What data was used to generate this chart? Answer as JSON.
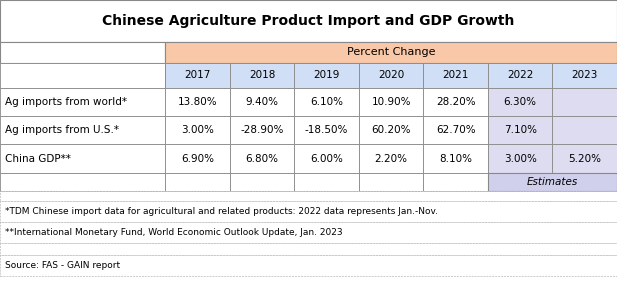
{
  "title": "Chinese Agriculture Product Import and GDP Growth",
  "header_label": "Percent Change",
  "years": [
    "2017",
    "2018",
    "2019",
    "2020",
    "2021",
    "2022",
    "2023"
  ],
  "rows": [
    {
      "label": "Ag imports from world*",
      "values": [
        "13.80%",
        "9.40%",
        "6.10%",
        "10.90%",
        "28.20%",
        "6.30%",
        ""
      ]
    },
    {
      "label": "Ag imports from U.S.*",
      "values": [
        "3.00%",
        "-28.90%",
        "-18.50%",
        "60.20%",
        "62.70%",
        "7.10%",
        ""
      ]
    },
    {
      "label": "China GDP**",
      "values": [
        "6.90%",
        "6.80%",
        "6.00%",
        "2.20%",
        "8.10%",
        "3.00%",
        "5.20%"
      ]
    }
  ],
  "estimates_label": "Estimates",
  "footnote1": "*TDM Chinese import data for agricultural and related products: 2022 data represents Jan.-Nov.",
  "footnote2": "**International Monetary Fund, World Economic Outlook Update, Jan. 2023",
  "source": "Source: FAS - GAIN report",
  "colors": {
    "title_bg": "#ffffff",
    "header_bg": "#f9c8a8",
    "year_row_bg": "#d0dff5",
    "data_white": "#ffffff",
    "data_blue_light": "#dde8f8",
    "data_lavender": "#dddcf0",
    "estimates_bg": "#d0d0ec",
    "border_main": "#888888",
    "border_dash": "#aaaaaa"
  }
}
